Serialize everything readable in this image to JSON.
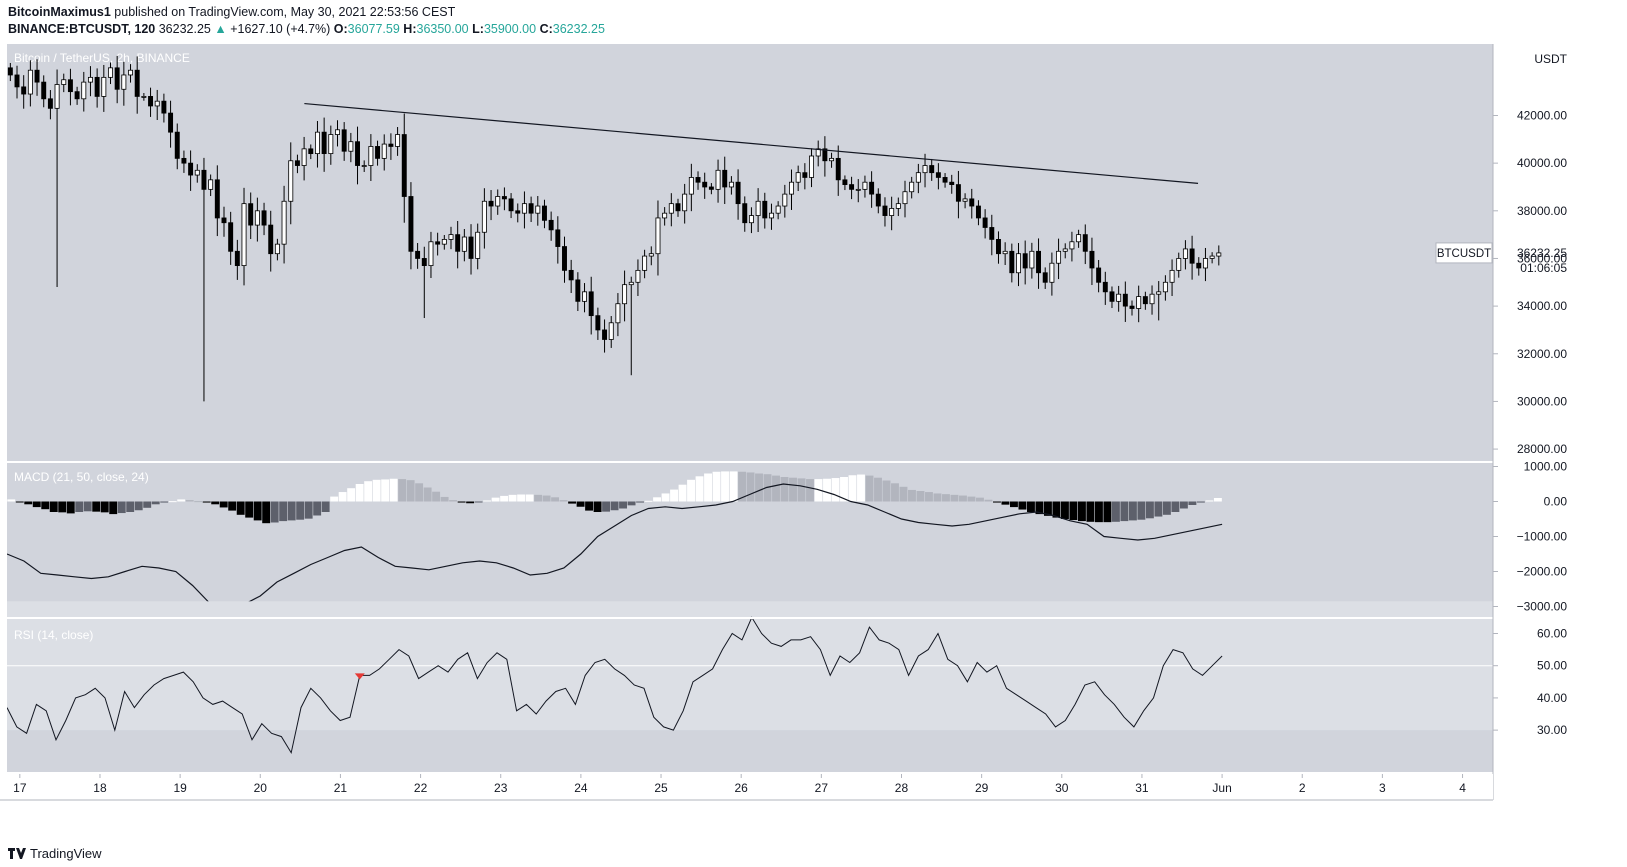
{
  "header": {
    "author": "BitcoinMaximus1",
    "published_text": "published on TradingView.com, May 30, 2021 22:53:56 CEST",
    "symbol_line": "BINANCE:BTCUSDT, 120",
    "last": "36232.25",
    "change_arrow": "▲",
    "change": "+1627.10 (+4.7%)",
    "o_label": "O:",
    "o": "36077.59",
    "h_label": "H:",
    "h": "36350.00",
    "l_label": "L:",
    "l": "35900.00",
    "c_label": "C:",
    "c": "36232.25"
  },
  "footer": {
    "brand": "TradingView"
  },
  "colors": {
    "pane_bg": "#d1d4dc",
    "rsi_band": "#dcdfe5",
    "candle_up": "#ffffff",
    "candle_down": "#000000",
    "macd_hist_pos_strong": "#ffffff",
    "macd_hist_pos_weak": "#b2b5be",
    "macd_hist_neg_strong": "#000000",
    "macd_hist_neg_weak": "#5d606b",
    "line": "#131722",
    "rsi_marker": "#e53935"
  },
  "chart_data": [
    {
      "type": "candlestick",
      "title": "Bitcoin / TetherUS, 2h, BINANCE",
      "series_name": "BTCUSDT",
      "y_axis_label": "USDT",
      "ylim": [
        27500,
        45000
      ],
      "y_ticks": [
        "42000.00",
        "40000.00",
        "38000.00",
        "36000.00",
        "34000.00",
        "32000.00",
        "30000.00",
        "28000.00"
      ],
      "last_price": "36232.25",
      "countdown": "01:06:05",
      "x_ticks": [
        "17",
        "18",
        "19",
        "20",
        "21",
        "22",
        "23",
        "24",
        "25",
        "26",
        "27",
        "28",
        "29",
        "30",
        "31",
        "Jun",
        "2",
        "3",
        "4"
      ],
      "x_range_days": [
        16.84,
        35.38
      ],
      "candle_interval_days": 0.0833,
      "ohlc_closes": [
        43700,
        43200,
        42900,
        43900,
        43400,
        42700,
        42300,
        43300,
        43500,
        43000,
        42700,
        43400,
        43600,
        42800,
        43600,
        44000,
        43100,
        43700,
        43900,
        42800,
        42800,
        42400,
        42600,
        42100,
        41300,
        40200,
        40000,
        39500,
        39700,
        38900,
        39300,
        37700,
        37500,
        36300,
        35700,
        38300,
        37400,
        38000,
        37400,
        36200,
        36600,
        38400,
        40100,
        39900,
        40600,
        40400,
        41300,
        40400,
        41200,
        41400,
        40500,
        40900,
        39900,
        39900,
        40700,
        40200,
        40800,
        40700,
        41200,
        38600,
        36300,
        36000,
        35700,
        36700,
        36600,
        36800,
        37000,
        36300,
        36900,
        36000,
        37100,
        38400,
        38200,
        38600,
        38500,
        38000,
        37900,
        38300,
        37900,
        38200,
        37600,
        37200,
        36500,
        35500,
        35100,
        34200,
        34600,
        33600,
        33000,
        32600,
        33300,
        34100,
        34900,
        35000,
        35500,
        36100,
        36200,
        37700,
        37900,
        38300,
        38000,
        38700,
        39400,
        39200,
        39000,
        38900,
        39700,
        39000,
        39200,
        38300,
        37500,
        37800,
        38400,
        37700,
        37900,
        38200,
        38700,
        39200,
        39600,
        39400,
        40300,
        40600,
        40100,
        40200,
        39300,
        39100,
        38900,
        38900,
        39200,
        38700,
        38200,
        37800,
        38100,
        38300,
        38800,
        39200,
        39600,
        39900,
        39600,
        39400,
        39200,
        39100,
        38400,
        38500,
        38200,
        37700,
        37300,
        36800,
        36200,
        36300,
        35400,
        36200,
        35600,
        36300,
        35400,
        35000,
        35800,
        36300,
        36400,
        36700,
        37000,
        36300,
        35600,
        35000,
        34600,
        34200,
        34500,
        34000,
        33900,
        34400,
        34100,
        34500,
        34600,
        35000,
        35500,
        36000,
        36400,
        35800,
        35600,
        36000,
        36100,
        36232.25
      ],
      "min_low": 30000,
      "max_high": 44500,
      "trendline": {
        "from": {
          "day": 20.55,
          "price": 42500
        },
        "to": {
          "day": 31.7,
          "price": 39150
        }
      }
    },
    {
      "type": "histogram+line",
      "title": "MACD (21, 50, close, 24)",
      "ylim": [
        -3300,
        1100
      ],
      "y_ticks": [
        {
          "v": 1000,
          "label": "1000.00"
        },
        {
          "v": 0,
          "label": "0.00"
        },
        {
          "v": -1000,
          "label": "−1000.00"
        },
        {
          "v": -2000,
          "label": "−2000.00"
        },
        {
          "v": -3000,
          "label": "−3000.00"
        }
      ],
      "histogram": [
        60,
        -10,
        -80,
        -160,
        -220,
        -300,
        -310,
        -340,
        -300,
        -280,
        -290,
        -310,
        -360,
        -330,
        -300,
        -250,
        -180,
        -80,
        -30,
        10,
        60,
        40,
        10,
        -30,
        -80,
        -170,
        -260,
        -380,
        -460,
        -540,
        -620,
        -600,
        -560,
        -540,
        -520,
        -490,
        -400,
        -300,
        140,
        270,
        380,
        500,
        580,
        620,
        630,
        650,
        640,
        610,
        520,
        400,
        280,
        130,
        40,
        -30,
        -50,
        -20,
        30,
        110,
        160,
        190,
        200,
        200,
        190,
        170,
        120,
        40,
        -60,
        -150,
        -260,
        -300,
        -290,
        -250,
        -200,
        -110,
        -30,
        20,
        120,
        230,
        340,
        480,
        620,
        720,
        800,
        850,
        860,
        860,
        850,
        830,
        800,
        780,
        740,
        700,
        680,
        660,
        640,
        640,
        650,
        670,
        700,
        750,
        770,
        740,
        680,
        600,
        520,
        420,
        330,
        300,
        270,
        230,
        210,
        190,
        170,
        140,
        110,
        50,
        -30,
        -90,
        -160,
        -230,
        -300,
        -360,
        -410,
        -460,
        -500,
        -530,
        -560,
        -580,
        -590,
        -590,
        -580,
        -560,
        -540,
        -520,
        -480,
        -430,
        -380,
        -300,
        -200,
        -100,
        -30,
        30,
        100
      ],
      "macd_line": [
        -1500,
        -1700,
        -2050,
        -2100,
        -2150,
        -2200,
        -2150,
        -2000,
        -1850,
        -1900,
        -2000,
        -2400,
        -2900,
        -3000,
        -2950,
        -2700,
        -2300,
        -2050,
        -1800,
        -1600,
        -1400,
        -1300,
        -1600,
        -1850,
        -1900,
        -1950,
        -1850,
        -1750,
        -1700,
        -1750,
        -1900,
        -2100,
        -2050,
        -1900,
        -1500,
        -1000,
        -700,
        -400,
        -200,
        -150,
        -200,
        -150,
        -100,
        0,
        200,
        400,
        500,
        450,
        350,
        200,
        0,
        -100,
        -300,
        -500,
        -600,
        -650,
        -700,
        -650,
        -550,
        -450,
        -350,
        -300,
        -400,
        -550,
        -650,
        -1000,
        -1050,
        -1100,
        -1050,
        -950,
        -850,
        -750,
        -650
      ]
    },
    {
      "type": "line",
      "title": "RSI (14, close)",
      "ylim": [
        17,
        64.5
      ],
      "band": [
        30,
        70
      ],
      "reference_line": 50,
      "y_ticks": [
        {
          "v": 60,
          "label": "60.00"
        },
        {
          "v": 50,
          "label": "50.00"
        },
        {
          "v": 40,
          "label": "40.00"
        },
        {
          "v": 30,
          "label": "30.00"
        }
      ],
      "values": [
        37,
        31,
        29,
        38,
        36,
        27,
        33,
        40,
        41,
        43,
        40,
        30,
        42,
        37,
        41,
        44,
        46,
        47,
        48,
        45,
        40,
        38,
        39,
        37,
        35,
        27,
        32,
        29,
        28,
        23,
        37,
        43,
        40,
        36,
        33,
        34,
        47,
        47,
        49,
        52,
        55,
        53,
        46,
        48,
        50,
        48,
        52,
        54,
        46,
        51,
        54,
        52,
        36,
        38,
        35,
        39,
        42,
        43,
        38,
        47,
        51,
        52,
        49,
        47,
        44,
        43,
        34,
        31,
        30,
        36,
        45,
        47,
        49,
        55,
        60,
        58,
        65,
        60,
        57,
        56,
        58,
        58,
        59,
        55,
        47,
        53,
        51,
        54,
        62,
        58,
        57,
        55,
        47,
        53,
        55,
        60,
        52,
        50,
        45,
        51,
        48,
        50,
        43,
        41,
        39,
        37,
        35,
        31,
        33,
        38,
        44,
        45,
        41,
        38,
        34,
        31,
        36,
        40,
        50,
        55,
        54,
        49,
        47,
        50,
        53
      ],
      "marker_index": 36
    }
  ]
}
